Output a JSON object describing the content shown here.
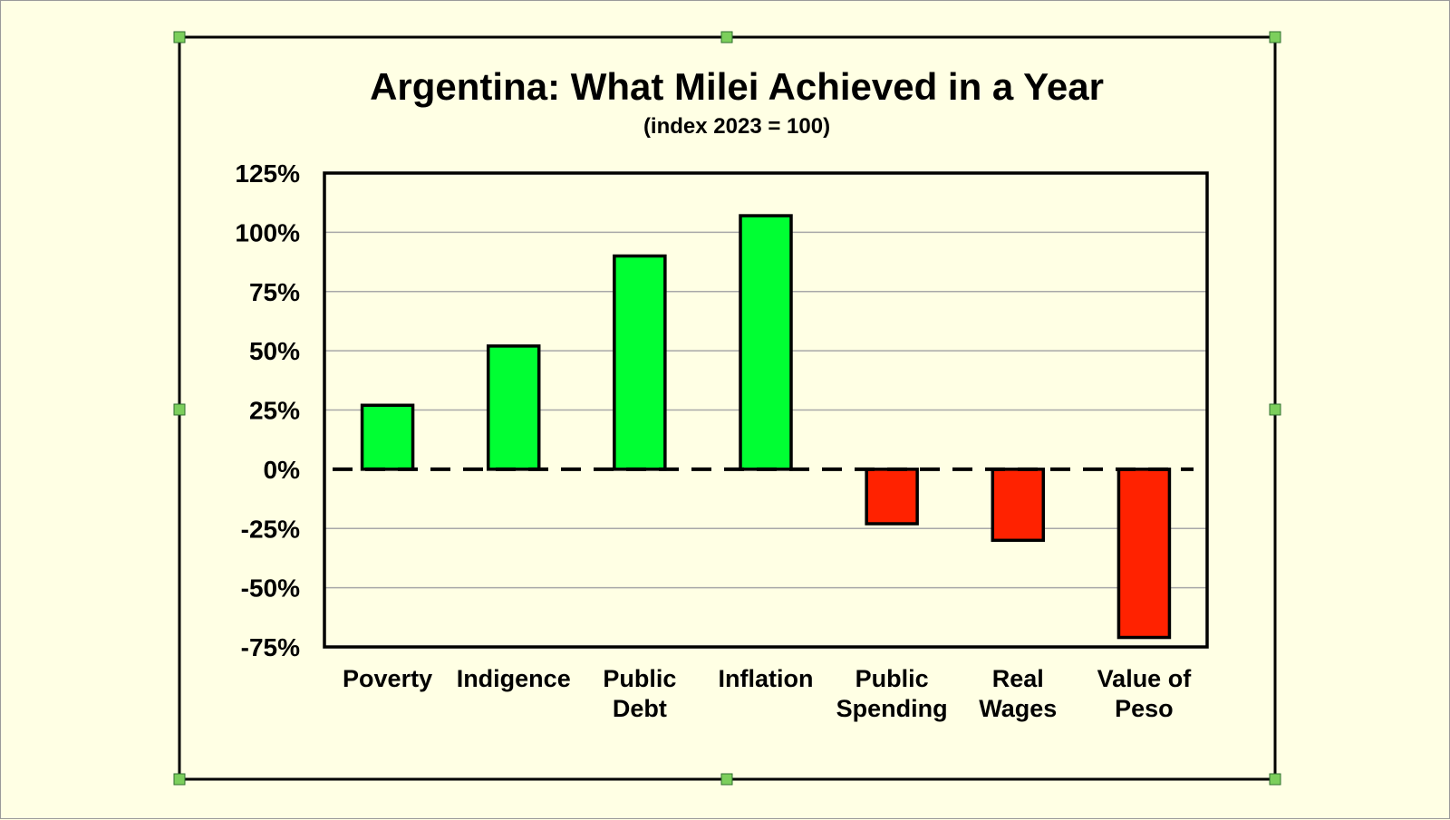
{
  "colors": {
    "background": "#ffffe4",
    "positive_bar": "#00ff33",
    "negative_bar": "#ff2200",
    "gridline": "#a8a8a8",
    "handle": "#7ccf5c"
  },
  "chart_data": {
    "type": "bar",
    "title": "Argentina: What Milei Achieved in a Year",
    "subtitle": "(index 2023 = 100)",
    "categories": [
      [
        "Poverty"
      ],
      [
        "Indigence"
      ],
      [
        "Public",
        "Debt"
      ],
      [
        "Inflation"
      ],
      [
        "Public",
        "Spending"
      ],
      [
        "Real",
        "Wages"
      ],
      [
        "Value of",
        "Peso"
      ]
    ],
    "values": [
      27,
      52,
      90,
      107,
      -23,
      -30,
      -71
    ],
    "ylim": [
      -75,
      125
    ],
    "yticks": [
      125,
      100,
      75,
      50,
      25,
      0,
      -25,
      -50,
      -75
    ],
    "ytick_labels": [
      "125%",
      "100%",
      "75%",
      "50%",
      "25%",
      "0%",
      "-25%",
      "-50%",
      "-75%"
    ],
    "grid": true,
    "zero_line": "dashed",
    "legend": "none"
  }
}
